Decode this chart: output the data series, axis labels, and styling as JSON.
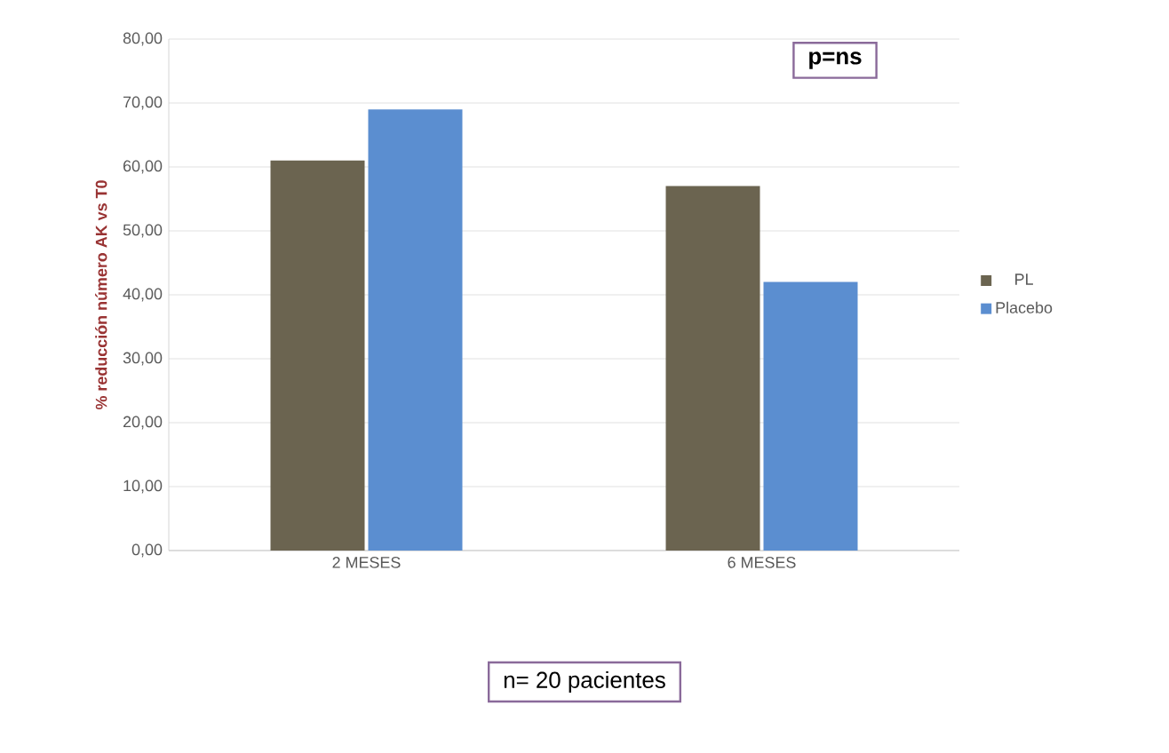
{
  "chart_data": {
    "type": "bar",
    "categories": [
      "2 MESES",
      "6 MESES"
    ],
    "series": [
      {
        "name": "PL",
        "color": "#6b6450",
        "values": [
          61,
          57
        ]
      },
      {
        "name": "Placebo",
        "color": "#5b8ed0",
        "values": [
          69,
          42
        ]
      }
    ],
    "ylabel": "% reducción número AK vs T0",
    "ylim": [
      0,
      80
    ],
    "yticks": [
      {
        "value": 0,
        "label": "0,00"
      },
      {
        "value": 10,
        "label": "10,00"
      },
      {
        "value": 20,
        "label": "20,00"
      },
      {
        "value": 30,
        "label": "30,00"
      },
      {
        "value": 40,
        "label": "40,00"
      },
      {
        "value": 50,
        "label": "50,00"
      },
      {
        "value": 60,
        "label": "60,00"
      },
      {
        "value": 70,
        "label": "70,00"
      },
      {
        "value": 80,
        "label": "80,00"
      }
    ],
    "annotations": [
      "p=ns",
      "n= 20 pacientes"
    ],
    "grid": "y",
    "legend": "right"
  }
}
